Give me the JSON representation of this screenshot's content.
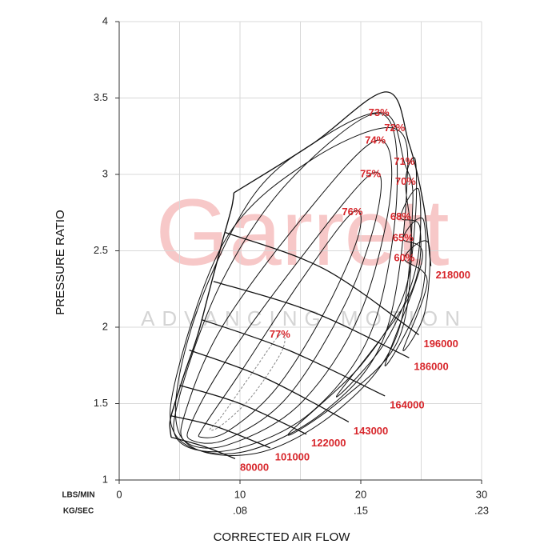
{
  "chart_data": {
    "type": "compressor-map",
    "x_label": "CORRECTED AIR FLOW",
    "y_label": "PRESSURE RATIO",
    "x_unit": "LBS/MIN",
    "x2_unit": "KG/SEC",
    "watermark": {
      "title": "Garrett",
      "subtitle": "ADVANCING MOTION"
    },
    "xlim": [
      0,
      30
    ],
    "xticks": [
      0,
      10,
      20,
      30
    ],
    "minor_xticks": [
      5,
      15,
      25
    ],
    "x2ticks": [
      {
        "value": 10,
        "label": ".08"
      },
      {
        "value": 20,
        "label": ".15"
      },
      {
        "value": 30,
        "label": ".23"
      }
    ],
    "ylim": [
      1,
      4
    ],
    "yticks": [
      1,
      1.5,
      2,
      2.5,
      3,
      3.5,
      4
    ],
    "grid": true,
    "line_color": "#111111",
    "label_color": "#d7262b",
    "surge_line": {
      "x": [
        4.3,
        4.2,
        4.6,
        5.5,
        6.5,
        7.5,
        8.5,
        9.3,
        9.5
      ],
      "values": [
        1.28,
        1.38,
        1.5,
        1.72,
        1.95,
        2.25,
        2.55,
        2.78,
        2.88
      ]
    },
    "speed_lines": [
      {
        "name": "80000",
        "x": [
          4.3,
          7,
          9.6
        ],
        "values": [
          1.28,
          1.22,
          1.14
        ]
      },
      {
        "name": "101000",
        "x": [
          4.3,
          8,
          12.5
        ],
        "values": [
          1.42,
          1.35,
          1.21
        ]
      },
      {
        "name": "122000",
        "x": [
          5.0,
          10,
          15.5
        ],
        "values": [
          1.62,
          1.5,
          1.3
        ]
      },
      {
        "name": "143000",
        "x": [
          5.8,
          12,
          19
        ],
        "values": [
          1.85,
          1.67,
          1.38
        ]
      },
      {
        "name": "164000",
        "x": [
          6.8,
          14,
          22
        ],
        "values": [
          2.05,
          1.85,
          1.55
        ]
      },
      {
        "name": "186000",
        "x": [
          7.8,
          16,
          24
        ],
        "values": [
          2.3,
          2.1,
          1.8
        ]
      },
      {
        "name": "196000",
        "x": [
          8.8,
          17,
          24.8
        ],
        "values": [
          2.62,
          2.38,
          1.95
        ]
      },
      {
        "name": "218000",
        "x": [
          9.5,
          16,
          22.1,
          24,
          25.2,
          25.8
        ],
        "values": [
          2.88,
          3.2,
          3.54,
          3.2,
          2.8,
          2.4
        ]
      }
    ],
    "islands": [
      {
        "name": "77%",
        "x": [
          13.3,
          11,
          8.5,
          7.5,
          8.5,
          11,
          13.5
        ],
        "values": [
          1.95,
          1.7,
          1.42,
          1.33,
          1.36,
          1.55,
          1.85
        ]
      },
      {
        "name": "76%",
        "x": [
          19.3,
          15,
          10,
          7,
          6.8,
          9,
          13,
          17,
          19.8
        ],
        "values": [
          2.75,
          2.3,
          1.7,
          1.35,
          1.28,
          1.32,
          1.6,
          2.1,
          2.6
        ]
      },
      {
        "name": "75%",
        "x": [
          20.8,
          15,
          9,
          6,
          6,
          9,
          14,
          19,
          21.5
        ],
        "values": [
          3.0,
          2.45,
          1.8,
          1.38,
          1.26,
          1.27,
          1.55,
          2.2,
          2.8
        ]
      },
      {
        "name": "74%",
        "x": [
          21.2,
          15,
          8.5,
          5.5,
          5.5,
          9,
          15,
          20,
          22.5
        ],
        "values": [
          3.22,
          2.7,
          2.0,
          1.45,
          1.25,
          1.23,
          1.5,
          2.1,
          2.9
        ]
      },
      {
        "name": "73%",
        "x": [
          21.5,
          14,
          8.5,
          5,
          5,
          9.5,
          16,
          21,
          23
        ],
        "values": [
          3.4,
          2.95,
          2.3,
          1.55,
          1.25,
          1.2,
          1.45,
          2.0,
          2.9
        ]
      },
      {
        "name": "72%",
        "x": [
          22.8,
          16,
          9,
          4.8,
          4.8,
          10,
          17,
          22,
          23.8
        ],
        "values": [
          3.3,
          3.1,
          2.6,
          1.7,
          1.28,
          1.18,
          1.45,
          1.95,
          2.9
        ]
      },
      {
        "name": "71%",
        "x": [
          23.6,
          22,
          17,
          11,
          6,
          5,
          11,
          18,
          23,
          24.3
        ],
        "values": [
          3.08,
          3.4,
          3.25,
          2.85,
          2.0,
          1.3,
          1.17,
          1.45,
          1.95,
          2.8
        ]
      },
      {
        "name": "70%",
        "x": [
          23.7,
          24.5,
          24.5,
          23.5,
          20,
          14,
          18,
          23,
          24.2
        ],
        "values": [
          2.95,
          3.1,
          2.7,
          2.2,
          1.75,
          1.3,
          1.5,
          1.9,
          2.5
        ]
      },
      {
        "name": "68%",
        "x": [
          23.3,
          24.8,
          24.6,
          22,
          18,
          24,
          24.9
        ],
        "values": [
          2.72,
          2.9,
          2.4,
          1.9,
          1.55,
          2.2,
          2.65
        ]
      },
      {
        "name": "65%",
        "x": [
          23.5,
          25.2,
          25,
          22,
          25.1
        ],
        "values": [
          2.58,
          2.7,
          2.2,
          1.75,
          2.45
        ]
      },
      {
        "name": "60%",
        "x": [
          23.6,
          25.6,
          25.3,
          23.5,
          25.5
        ],
        "values": [
          2.45,
          2.55,
          2.1,
          1.85,
          2.3
        ]
      }
    ]
  }
}
